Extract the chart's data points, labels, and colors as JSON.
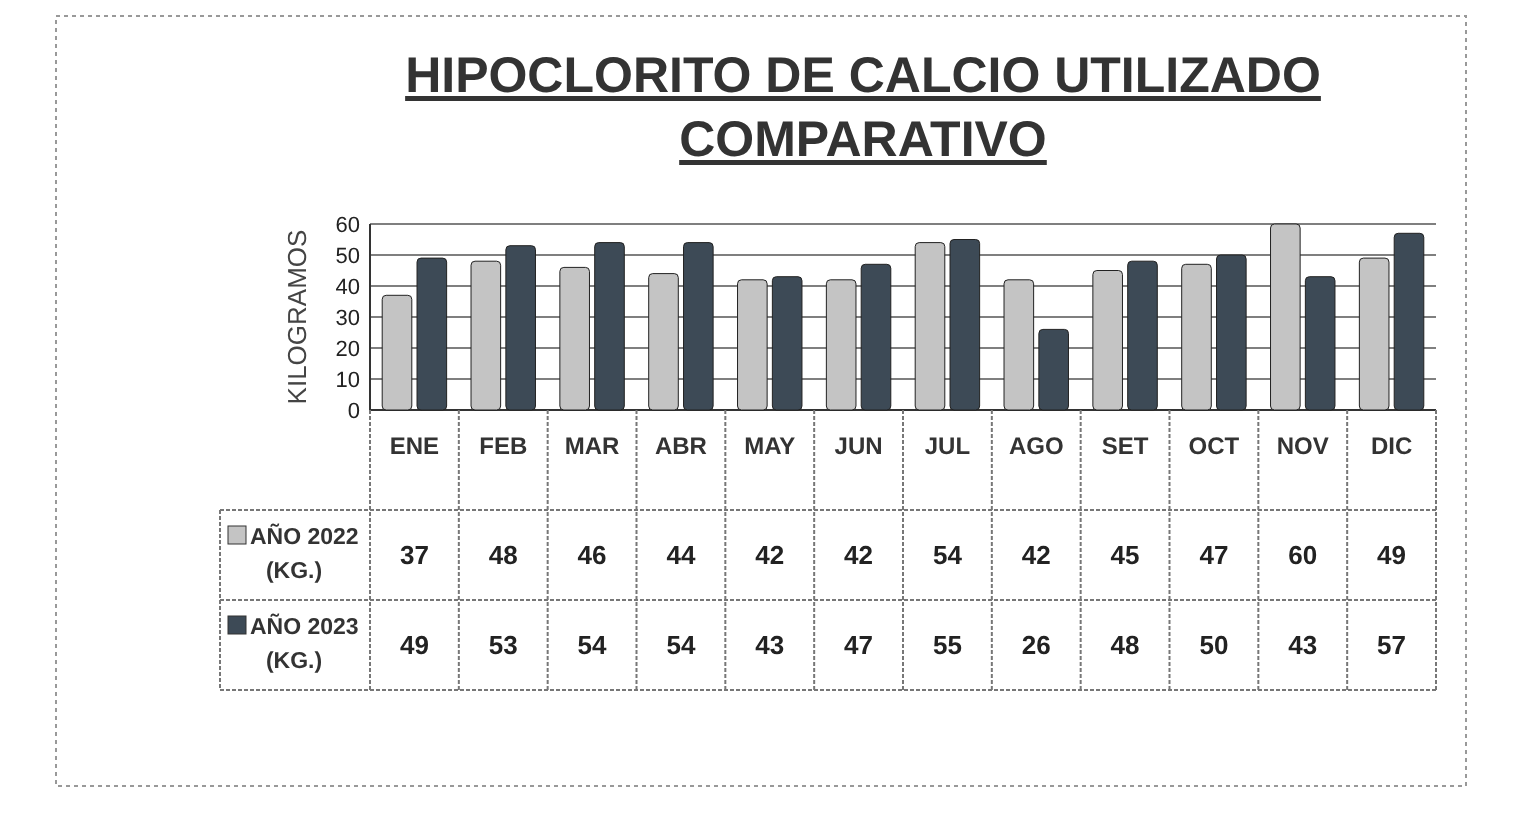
{
  "chart_data": {
    "type": "bar",
    "title": "HIPOCLORITO DE CALCIO UTILIZADO\nCOMPARATIVO",
    "ylabel": "KILOGRAMOS",
    "categories": [
      "ENE",
      "FEB",
      "MAR",
      "ABR",
      "MAY",
      "JUN",
      "JUL",
      "AGO",
      "SET",
      "OCT",
      "NOV",
      "DIC"
    ],
    "series": [
      {
        "name": "AÑO 2022 (KG.)",
        "color": "#c4c4c4",
        "values": [
          37,
          48,
          46,
          44,
          42,
          42,
          54,
          42,
          45,
          47,
          60,
          49
        ]
      },
      {
        "name": "AÑO 2023 (KG.)",
        "color": "#3d4a56",
        "values": [
          49,
          53,
          54,
          54,
          43,
          47,
          55,
          26,
          48,
          50,
          43,
          57
        ]
      }
    ],
    "ylim": [
      0,
      60
    ],
    "yticks": [
      0,
      10,
      20,
      30,
      40,
      50,
      60
    ],
    "grid": "y",
    "data_labels": true,
    "legend": "bottom left"
  }
}
